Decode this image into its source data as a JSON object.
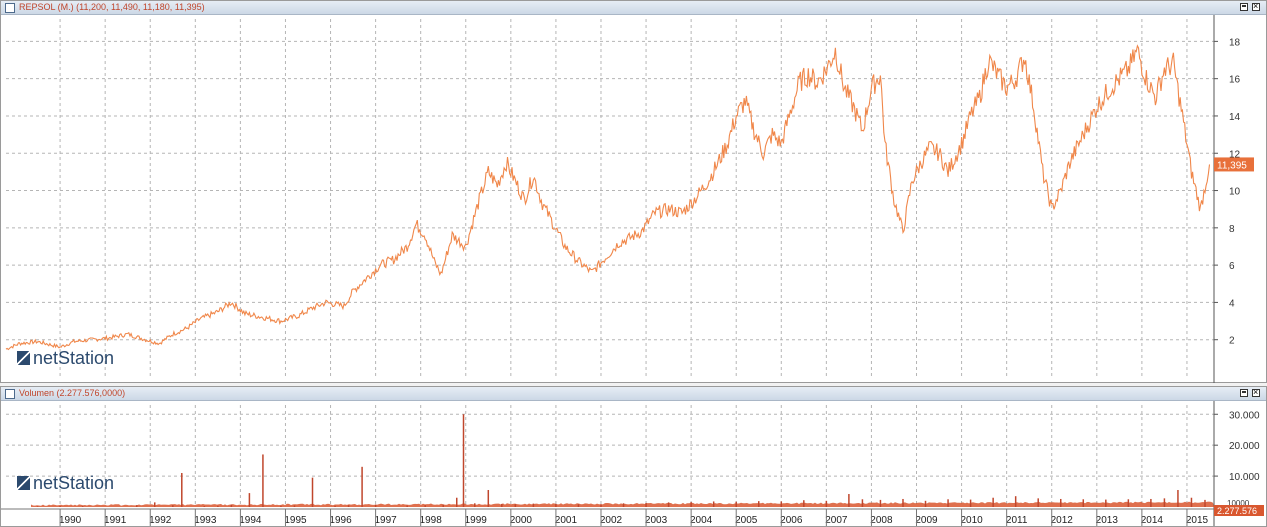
{
  "price_panel": {
    "title": "REPSOL (M.) (11,200, 11,490, 11,180, 11,395)",
    "last_value_label": "11,395",
    "logo": "netStation"
  },
  "volume_panel": {
    "title": "Volumen (2.277.576,0000)",
    "last_value_label": "2.277.576",
    "truncated_tick": "10000",
    "logo": "netStation"
  },
  "chart_data": [
    {
      "type": "line",
      "name": "price",
      "x_ticks": [
        "1990",
        "1991",
        "1992",
        "1993",
        "1994",
        "1995",
        "1996",
        "1997",
        "1998",
        "1999",
        "2000",
        "2001",
        "2002",
        "2003",
        "2004",
        "2005",
        "2006",
        "2007",
        "2008",
        "2009",
        "2010",
        "2011",
        "2012",
        "2013",
        "2014",
        "2015"
      ],
      "y_ticks": [
        "2",
        "4",
        "6",
        "8",
        "10",
        "12",
        "14",
        "16",
        "18"
      ],
      "ylim": [
        0,
        19.2
      ],
      "xlim": [
        1989.3,
        2016.1
      ],
      "grid": true,
      "color": "#f0874a",
      "x": [
        1989.3,
        1989.6,
        1990.0,
        1990.5,
        1990.8,
        1991.2,
        1991.6,
        1992.0,
        1992.4,
        1992.7,
        1993.0,
        1993.3,
        1993.6,
        1994.0,
        1994.3,
        1994.6,
        1995.0,
        1995.4,
        1995.8,
        1996.1,
        1996.4,
        1996.8,
        1997.0,
        1997.3,
        1997.6,
        1997.9,
        1998.2,
        1998.4,
        1998.6,
        1998.8,
        1998.95,
        1999.2,
        1999.5,
        1999.8,
        2000.0,
        2000.2,
        2000.4,
        2000.6,
        2000.8,
        2001.0,
        2001.2,
        2001.4,
        2001.7,
        2002.0,
        2002.3,
        2002.6,
        2002.9,
        2003.1,
        2003.4,
        2003.7,
        2004.0,
        2004.3,
        2004.6,
        2004.9,
        2005.1,
        2005.3,
        2005.5,
        2005.7,
        2005.9,
        2006.1,
        2006.3,
        2006.5,
        2006.7,
        2006.9,
        2007.1,
        2007.3,
        2007.5,
        2007.7,
        2007.9,
        2008.1,
        2008.3,
        2008.5,
        2008.7,
        2008.8,
        2009.0,
        2009.2,
        2009.4,
        2009.6,
        2009.8,
        2010.0,
        2010.2,
        2010.5,
        2010.7,
        2010.9,
        2011.1,
        2011.3,
        2011.5,
        2011.7,
        2011.9,
        2012.1,
        2012.3,
        2012.5,
        2012.7,
        2012.9,
        2013.2,
        2013.5,
        2013.8,
        2014.0,
        2014.2,
        2014.4,
        2014.6,
        2014.8,
        2015.0,
        2015.2,
        2015.4,
        2015.6,
        2015.8,
        2016.0
      ],
      "y": [
        1.5,
        1.8,
        1.9,
        1.6,
        1.9,
        2.0,
        2.1,
        2.3,
        2.0,
        1.8,
        2.3,
        2.6,
        3.1,
        3.5,
        4.0,
        3.4,
        3.2,
        3.0,
        3.3,
        3.7,
        4.0,
        3.8,
        4.6,
        5.3,
        6.0,
        6.3,
        7.0,
        8.2,
        7.6,
        6.2,
        5.5,
        7.6,
        7.0,
        9.5,
        11.0,
        10.3,
        11.5,
        10.5,
        9.5,
        10.8,
        9.3,
        8.4,
        7.0,
        6.2,
        5.6,
        6.4,
        7.2,
        7.4,
        7.8,
        8.8,
        9.0,
        8.8,
        9.6,
        10.6,
        11.5,
        12.5,
        14.0,
        14.8,
        13.2,
        12.0,
        13.0,
        12.5,
        14.2,
        15.8,
        16.2,
        15.8,
        16.5,
        17.5,
        15.5,
        14.5,
        13.2,
        15.5,
        16.2,
        12.5,
        9.5,
        7.8,
        10.5,
        11.5,
        12.3,
        12.0,
        11.0,
        12.5,
        14.0,
        15.0,
        17.0,
        16.2,
        15.5,
        16.0,
        17.2,
        14.5,
        11.0,
        9.0,
        10.0,
        11.5,
        13.0,
        14.5,
        15.5,
        16.0,
        16.5,
        17.5,
        16.0,
        15.0,
        16.5,
        16.8,
        14.0,
        11.0,
        9.0,
        11.4
      ]
    },
    {
      "type": "bar",
      "name": "volume",
      "y_ticks": [
        "10.000",
        "20.000",
        "30.000"
      ],
      "ylim": [
        0,
        33000
      ],
      "xlim": [
        1989.3,
        2016.1
      ],
      "color": "#c0462c",
      "x": [
        1990.0,
        1990.5,
        1991.0,
        1992.2,
        1992.6,
        1993.0,
        1993.2,
        1993.7,
        1994.0,
        1994.3,
        1994.7,
        1995.0,
        1995.4,
        1995.7,
        1996.1,
        1996.6,
        1996.9,
        1997.2,
        1997.5,
        1998.2,
        1998.6,
        1999.0,
        1999.3,
        1999.45,
        1999.7,
        2000.0,
        2000.3,
        2000.6,
        2001.0,
        2001.5,
        2002.0,
        2002.5,
        2003.0,
        2003.5,
        2004.0,
        2004.5,
        2005.0,
        2005.5,
        2006.0,
        2006.5,
        2007.0,
        2007.5,
        2008.0,
        2008.3,
        2008.7,
        2009.2,
        2009.7,
        2010.2,
        2010.7,
        2011.2,
        2011.7,
        2012.2,
        2012.7,
        2013.2,
        2013.7,
        2014.2,
        2014.7,
        2015.0,
        2015.3,
        2015.6,
        2015.9
      ],
      "values": [
        200,
        300,
        300,
        600,
        1500,
        600,
        11000,
        300,
        400,
        800,
        4500,
        17000,
        400,
        500,
        9500,
        400,
        600,
        13000,
        800,
        500,
        600,
        800,
        3000,
        30000,
        1200,
        5500,
        1000,
        900,
        1100,
        1000,
        900,
        900,
        1200,
        1300,
        1500,
        1600,
        1800,
        1700,
        1900,
        1800,
        2200,
        2000,
        4200,
        2500,
        2300,
        2600,
        2000,
        2500,
        2400,
        3000,
        3500,
        2800,
        2600,
        2500,
        2400,
        2500,
        2600,
        2800,
        5500,
        3000,
        2300
      ]
    }
  ]
}
